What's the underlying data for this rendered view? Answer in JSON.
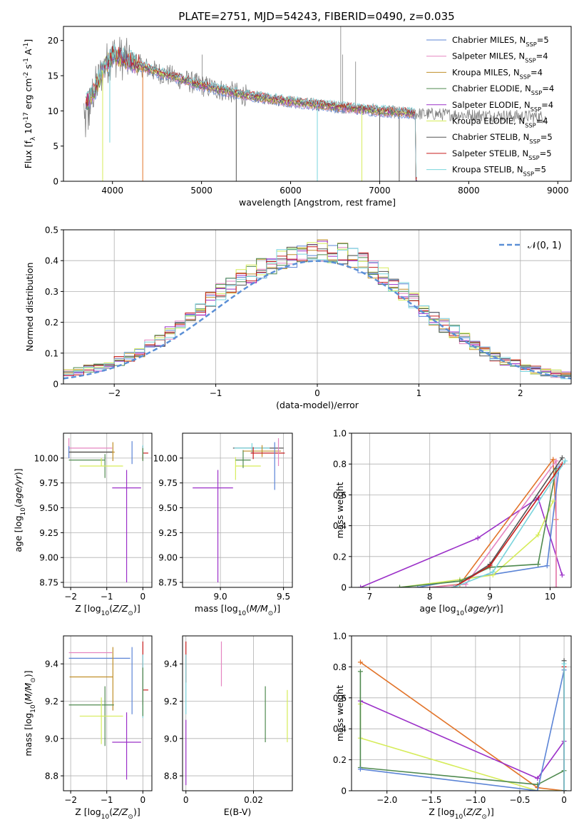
{
  "colors": {
    "Chabrier MILES": "#5b84d6",
    "Salpeter MILES": "#e585c0",
    "Kroupa MILES": "#c08f2a",
    "Chabrier ELODIE": "#4f8a4f",
    "Salpeter ELODIE": "#9b30c8",
    "Kroupa ELODIE": "#d6ec5a",
    "Chabrier STELIB": "#555555",
    "Salpeter STELIB": "#c81e1e",
    "Kroupa STELIB": "#79d4dc",
    "orange": "#e2742a",
    "gaussian": "#5b8fd6"
  },
  "chart_data": [
    {
      "type": "line",
      "title": "PLATE=2751, MJD=54243, FIBERID=0490, z=0.035",
      "xlabel": "wavelength [Angstrom, rest frame]",
      "ylabel": "Flux [f_λ 10^-17 erg cm^-2 s^-1 A^-1]",
      "xlim": [
        3450,
        9150
      ],
      "ylim": [
        0,
        22
      ],
      "xticks": [
        4000,
        5000,
        6000,
        7000,
        8000,
        9000
      ],
      "yticks": [
        0,
        5,
        10,
        15,
        20
      ],
      "legend": {
        "placement": "top-right",
        "entries": [
          {
            "model": "Chabrier MILES",
            "nssp": "5"
          },
          {
            "model": "Salpeter MILES",
            "nssp": "4"
          },
          {
            "model": "Kroupa MILES",
            "nssp": "4"
          },
          {
            "model": "Chabrier ELODIE",
            "nssp": "4"
          },
          {
            "model": "Salpeter ELODIE",
            "nssp": "4"
          },
          {
            "model": "Kroupa ELODIE",
            "nssp": "4"
          },
          {
            "model": "Chabrier STELIB",
            "nssp": "5"
          },
          {
            "model": "Salpeter STELIB",
            "nssp": "5"
          },
          {
            "model": "Kroupa STELIB",
            "nssp": "5"
          }
        ]
      },
      "spectrum_shape": {
        "x": [
          3700,
          3800,
          3900,
          4000,
          4100,
          4300,
          4500,
          4700,
          5000,
          5500,
          6000,
          6500,
          7000,
          7400,
          7420
        ],
        "y": [
          11,
          13,
          16,
          18,
          17.5,
          16.5,
          15.5,
          14.8,
          13.6,
          12.2,
          11.3,
          10.6,
          10.0,
          9.6,
          0
        ]
      },
      "data_line_x_end": 8870,
      "absorption_spikes": [
        {
          "x": 3890,
          "y": 0,
          "model": "Kroupa ELODIE"
        },
        {
          "x": 3970,
          "y": 5.5,
          "model": "Kroupa STELIB"
        },
        {
          "x": 4340,
          "y": 0,
          "model": "orange"
        },
        {
          "x": 5390,
          "y": 0,
          "model": "Chabrier STELIB"
        },
        {
          "x": 6300,
          "y": 0,
          "model": "Kroupa STELIB"
        },
        {
          "x": 6800,
          "y": 0,
          "model": "Kroupa ELODIE"
        },
        {
          "x": 7000,
          "y": 0,
          "model": "Chabrier STELIB"
        },
        {
          "x": 7220,
          "y": 0,
          "model": "Chabrier STELIB"
        }
      ],
      "emission_spikes": [
        {
          "x": 6563,
          "y": 22
        },
        {
          "x": 6583,
          "y": 18
        },
        {
          "x": 6730,
          "y": 17
        },
        {
          "x": 5007,
          "y": 18
        }
      ]
    },
    {
      "type": "histogram",
      "xlabel": "(data-model)/error",
      "ylabel": "Normed distribution",
      "xlim": [
        -2.5,
        2.5
      ],
      "ylim": [
        0,
        0.5
      ],
      "xticks": [
        -2,
        -1,
        0,
        1,
        2
      ],
      "yticks": [
        0.0,
        0.1,
        0.2,
        0.3,
        0.4,
        0.5
      ],
      "grid": true,
      "legend": {
        "placement": "top-right",
        "label": "𝒩(0, 1)"
      },
      "bin_width": 0.1,
      "x_start": -2.5,
      "shape_peak": 0.405,
      "shape_width": 0.98,
      "envelope": [
        0.035,
        0.042,
        0.05,
        0.055,
        0.065,
        0.075,
        0.09,
        0.105,
        0.125,
        0.14,
        0.165,
        0.19,
        0.215,
        0.245,
        0.27,
        0.3,
        0.32,
        0.345,
        0.36,
        0.375,
        0.39,
        0.4,
        0.41,
        0.42,
        0.43,
        0.43,
        0.43,
        0.42,
        0.41,
        0.39,
        0.37,
        0.35,
        0.33,
        0.3,
        0.27,
        0.245,
        0.215,
        0.19,
        0.17,
        0.145,
        0.125,
        0.105,
        0.09,
        0.075,
        0.065,
        0.055,
        0.045,
        0.04,
        0.033,
        0.027
      ],
      "series_noise": 0.028
    },
    {
      "type": "errorbar",
      "xlabel": "Z [log10(Z/Z⊙)]",
      "ylabel": "age  [log10(age/yr)]",
      "xlim": [
        -2.2,
        0.25
      ],
      "ylim": [
        8.7,
        10.25
      ],
      "xticks": [
        -2,
        -1,
        0
      ],
      "yticks": [
        8.75,
        9.0,
        9.25,
        9.5,
        9.75,
        10.0
      ],
      "grid": true,
      "points": [
        {
          "model": "Salpeter MILES",
          "x": -2.05,
          "xerr": [
            0,
            1.2
          ],
          "y": 10.1,
          "yerr": [
            0.1,
            0.1
          ]
        },
        {
          "model": "Chabrier MILES",
          "x": -2.05,
          "xerr": [
            0,
            1.22
          ],
          "y": 10.06,
          "yerr": [
            0.06,
            0.06
          ]
        },
        {
          "model": "Kroupa MILES",
          "x": -0.83,
          "xerr": [
            1.2,
            0.05
          ],
          "y": 10.06,
          "yerr": [
            0.09,
            0.1
          ]
        },
        {
          "model": "Chabrier STELIB",
          "x": -2.05,
          "xerr": [
            0,
            1.2
          ],
          "y": 10.06,
          "yerr": [
            0.0,
            0.0
          ]
        },
        {
          "model": "Chabrier ELODIE",
          "x": -1.05,
          "xerr": [
            1.0,
            0.0
          ],
          "y": 9.98,
          "yerr": [
            0.18,
            0.06
          ]
        },
        {
          "model": "Kroupa ELODIE",
          "x": -1.15,
          "xerr": [
            0.6,
            0.6
          ],
          "y": 9.92,
          "yerr": [
            0.0,
            0.08
          ]
        },
        {
          "model": "Salpeter ELODIE",
          "x": -0.45,
          "xerr": [
            0.4,
            0.4
          ],
          "y": 9.7,
          "yerr": [
            0.95,
            0.18
          ]
        },
        {
          "model": "Chabrier MILES",
          "x": -0.3,
          "xerr": [
            0.0,
            0.0
          ],
          "y": 10.06,
          "yerr": [
            0.12,
            0.11
          ]
        },
        {
          "model": "Salpeter STELIB",
          "x": 0.0,
          "xerr": [
            0.0,
            0.15
          ],
          "y": 10.05,
          "yerr": [
            0.07,
            0.07
          ]
        },
        {
          "model": "Kroupa STELIB",
          "x": 0.0,
          "xerr": [
            0.0,
            0.0
          ],
          "y": 10.08,
          "yerr": [
            0.05,
            0.05
          ]
        },
        {
          "model": "Chabrier ELODIE",
          "x": 0.0,
          "xerr": [
            0.0,
            0.0
          ],
          "y": 10.05,
          "yerr": [
            0.08,
            0.05
          ]
        }
      ]
    },
    {
      "type": "errorbar",
      "xlabel": "mass [log10(M/M⊙)]",
      "ylabel": "",
      "xlim": [
        8.7,
        9.57
      ],
      "ylim": [
        8.7,
        10.25
      ],
      "xticks": [
        9.0,
        9.5
      ],
      "yticks": [
        8.75,
        9.0,
        9.25,
        9.5,
        9.75,
        10.0
      ],
      "grid": true,
      "points": [
        {
          "model": "Salpeter ELODIE",
          "x": 8.98,
          "xerr": [
            0.2,
            0.12
          ],
          "y": 9.7,
          "yerr": [
            0.95,
            0.18
          ]
        },
        {
          "model": "Kroupa ELODIE",
          "x": 9.12,
          "xerr": [
            0.0,
            0.2
          ],
          "y": 9.92,
          "yerr": [
            0.14,
            0.09
          ]
        },
        {
          "model": "Chabrier ELODIE",
          "x": 9.18,
          "xerr": [
            0.06,
            0.06
          ],
          "y": 9.98,
          "yerr": [
            0.08,
            0.1
          ]
        },
        {
          "model": "Chabrier STELIB",
          "x": 9.3,
          "xerr": [
            0.2,
            0.2
          ],
          "y": 10.1,
          "yerr": [
            0.0,
            0.0
          ]
        },
        {
          "model": "Kroupa STELIB",
          "x": 9.25,
          "xerr": [
            0.14,
            0.14
          ],
          "y": 10.1,
          "yerr": [
            0.05,
            0.05
          ]
        },
        {
          "model": "Kroupa MILES",
          "x": 9.33,
          "xerr": [
            0.15,
            0.15
          ],
          "y": 10.07,
          "yerr": [
            0.06,
            0.06
          ]
        },
        {
          "model": "Salpeter STELIB",
          "x": 9.26,
          "xerr": [
            0.02,
            0.25
          ],
          "y": 10.05,
          "yerr": [
            0.06,
            0.06
          ]
        },
        {
          "model": "Chabrier MILES",
          "x": 9.43,
          "xerr": [
            0.0,
            0.0
          ],
          "y": 10.06,
          "yerr": [
            0.38,
            0.1
          ]
        },
        {
          "model": "Salpeter MILES",
          "x": 9.46,
          "xerr": [
            0.0,
            0.0
          ],
          "y": 10.1,
          "yerr": [
            0.18,
            0.1
          ]
        }
      ]
    },
    {
      "type": "line",
      "xlabel": "age  [log10(age/yr)]",
      "ylabel": "mass weight",
      "xlim": [
        6.7,
        10.35
      ],
      "ylim": [
        0,
        1
      ],
      "xticks": [
        7,
        8,
        9,
        10
      ],
      "yticks": [
        0.0,
        0.2,
        0.4,
        0.6,
        0.8,
        1.0
      ],
      "grid": true,
      "series": [
        {
          "model": "Salpeter ELODIE",
          "x": [
            6.85,
            8.8,
            9.8,
            10.2
          ],
          "y": [
            0.0,
            0.32,
            0.58,
            0.08
          ]
        },
        {
          "model": "orange",
          "x": [
            8.0,
            8.5,
            10.05,
            10.1,
            10.1
          ],
          "y": [
            0.0,
            0.02,
            0.83,
            0.44,
            0.0
          ]
        },
        {
          "model": "Salpeter MILES",
          "x": [
            8.0,
            8.6,
            10.1,
            10.1
          ],
          "y": [
            0.0,
            0.02,
            0.82,
            0.0
          ]
        },
        {
          "model": "Chabrier MILES",
          "x": [
            7.8,
            8.5,
            9.95,
            10.15
          ],
          "y": [
            0.0,
            0.05,
            0.14,
            0.78
          ]
        },
        {
          "model": "Kroupa ELODIE",
          "x": [
            7.5,
            8.5,
            9.05,
            9.8,
            10.05
          ],
          "y": [
            0.0,
            0.05,
            0.08,
            0.34,
            0.56
          ]
        },
        {
          "model": "Chabrier ELODIE",
          "x": [
            7.5,
            8.5,
            9.0,
            9.8,
            10.1
          ],
          "y": [
            0.0,
            0.04,
            0.13,
            0.15,
            0.77
          ]
        },
        {
          "model": "Chabrier STELIB",
          "x": [
            8.4,
            9.0,
            10.2
          ],
          "y": [
            0.0,
            0.15,
            0.84
          ]
        },
        {
          "model": "Salpeter STELIB",
          "x": [
            8.4,
            9.0,
            10.2
          ],
          "y": [
            0.0,
            0.14,
            0.8
          ]
        },
        {
          "model": "Kroupa STELIB",
          "x": [
            8.4,
            9.05,
            10.25
          ],
          "y": [
            0.0,
            0.1,
            0.82
          ]
        }
      ]
    },
    {
      "type": "errorbar",
      "xlabel": "Z [log10(Z/Z⊙)]",
      "ylabel": "mass [log10(M/M⊙)]",
      "xlim": [
        -2.2,
        0.25
      ],
      "ylim": [
        8.72,
        9.55
      ],
      "xticks": [
        -2,
        -1,
        0
      ],
      "yticks": [
        8.8,
        9.0,
        9.2,
        9.4
      ],
      "grid": true,
      "points": [
        {
          "model": "Salpeter MILES",
          "x": -2.05,
          "xerr": [
            0,
            1.2
          ],
          "y": 9.46,
          "yerr": [
            0.0,
            0.0
          ]
        },
        {
          "model": "Chabrier MILES",
          "x": -2.05,
          "xerr": [
            0,
            1.7
          ],
          "y": 9.43,
          "yerr": [
            0.0,
            0.0
          ]
        },
        {
          "model": "Kroupa MILES",
          "x": -0.83,
          "xerr": [
            1.2,
            0.0
          ],
          "y": 9.33,
          "yerr": [
            0.18,
            0.16
          ]
        },
        {
          "model": "Chabrier ELODIE",
          "x": -1.05,
          "xerr": [
            1.0,
            0.25
          ],
          "y": 9.18,
          "yerr": [
            0.22,
            0.1
          ]
        },
        {
          "model": "Kroupa ELODIE",
          "x": -1.15,
          "xerr": [
            0.6,
            0.6
          ],
          "y": 9.12,
          "yerr": [
            0.15,
            0.1
          ]
        },
        {
          "model": "Salpeter ELODIE",
          "x": -0.45,
          "xerr": [
            0.4,
            0.4
          ],
          "y": 8.98,
          "yerr": [
            0.2,
            0.16
          ]
        },
        {
          "model": "Chabrier MILES",
          "x": -0.3,
          "xerr": [
            0.0,
            0.0
          ],
          "y": 9.43,
          "yerr": [
            0.3,
            0.06
          ]
        },
        {
          "model": "Salpeter STELIB",
          "x": 0.0,
          "xerr": [
            0.0,
            0.15
          ],
          "y": 9.26,
          "yerr": [
            0.08,
            0.26
          ]
        },
        {
          "model": "Kroupa STELIB",
          "x": 0.0,
          "xerr": [
            0.0,
            0.0
          ],
          "y": 9.25,
          "yerr": [
            0.14,
            0.2
          ]
        },
        {
          "model": "Chabrier ELODIE",
          "x": 0.0,
          "xerr": [
            0.0,
            0.0
          ],
          "y": 9.18,
          "yerr": [
            0.06,
            0.2
          ]
        }
      ]
    },
    {
      "type": "errorbar",
      "xlabel": "E(B-V)",
      "ylabel": "",
      "xlim": [
        -0.001,
        0.0315
      ],
      "ylim": [
        8.72,
        9.55
      ],
      "xticks": [
        0.0,
        0.02
      ],
      "yticks": [
        8.8,
        9.0,
        9.2,
        9.4
      ],
      "grid": true,
      "points": [
        {
          "model": "Salpeter ELODIE",
          "x": 0.0,
          "xerr": [
            0,
            0
          ],
          "y": 8.93,
          "yerr": [
            0.18,
            0.17
          ]
        },
        {
          "model": "Salpeter STELIB",
          "x": 0.0,
          "xerr": [
            0,
            0
          ],
          "y": 9.4,
          "yerr": [
            0.1,
            0.12
          ]
        },
        {
          "model": "Kroupa STELIB",
          "x": 0.0,
          "xerr": [
            0,
            0
          ],
          "y": 9.25,
          "yerr": [
            0.12,
            0.2
          ]
        },
        {
          "model": "Salpeter MILES",
          "x": 0.0105,
          "xerr": [
            0,
            0
          ],
          "y": 9.4,
          "yerr": [
            0.12,
            0.12
          ]
        },
        {
          "model": "Chabrier ELODIE",
          "x": 0.0235,
          "xerr": [
            0,
            0
          ],
          "y": 9.18,
          "yerr": [
            0.2,
            0.1
          ]
        },
        {
          "model": "Kroupa ELODIE",
          "x": 0.03,
          "xerr": [
            0,
            0
          ],
          "y": 9.12,
          "yerr": [
            0.14,
            0.14
          ]
        }
      ]
    },
    {
      "type": "line",
      "xlabel": "Z [log10(Z/Z⊙)]",
      "ylabel": "mass weight",
      "xlim": [
        -2.4,
        0.08
      ],
      "ylim": [
        0,
        1
      ],
      "xticks": [
        -2.0,
        -1.5,
        -1.0,
        -0.5,
        0.0
      ],
      "yticks": [
        0.0,
        0.2,
        0.4,
        0.6,
        0.8,
        1.0
      ],
      "grid": true,
      "series": [
        {
          "model": "orange",
          "x": [
            -2.3,
            -0.3,
            0.0
          ],
          "y": [
            0.83,
            0.02,
            0.0
          ]
        },
        {
          "model": "Salpeter ELODIE",
          "x": [
            -2.3,
            -0.3,
            0.0,
            0.0
          ],
          "y": [
            0.58,
            0.08,
            0.32,
            0.0
          ]
        },
        {
          "model": "Kroupa ELODIE",
          "x": [
            -2.3,
            -2.3,
            -0.3,
            0.0
          ],
          "y": [
            0.56,
            0.34,
            0.0,
            0.0
          ]
        },
        {
          "model": "Chabrier ELODIE",
          "x": [
            -2.3,
            -2.3,
            -0.3,
            0.0,
            0.0
          ],
          "y": [
            0.77,
            0.15,
            0.04,
            0.13,
            0.0
          ]
        },
        {
          "model": "Chabrier MILES",
          "x": [
            -2.3,
            -0.3,
            0.0,
            0.0
          ],
          "y": [
            0.14,
            0.0,
            0.78,
            0.0
          ]
        },
        {
          "model": "Chabrier STELIB",
          "x": [
            0.0,
            0.0
          ],
          "y": [
            0.0,
            0.84
          ]
        },
        {
          "model": "Salpeter STELIB",
          "x": [
            0.0,
            0.0
          ],
          "y": [
            0.0,
            0.8
          ]
        },
        {
          "model": "Kroupa STELIB",
          "x": [
            0.0,
            0.0
          ],
          "y": [
            0.0,
            0.82
          ]
        }
      ]
    }
  ]
}
